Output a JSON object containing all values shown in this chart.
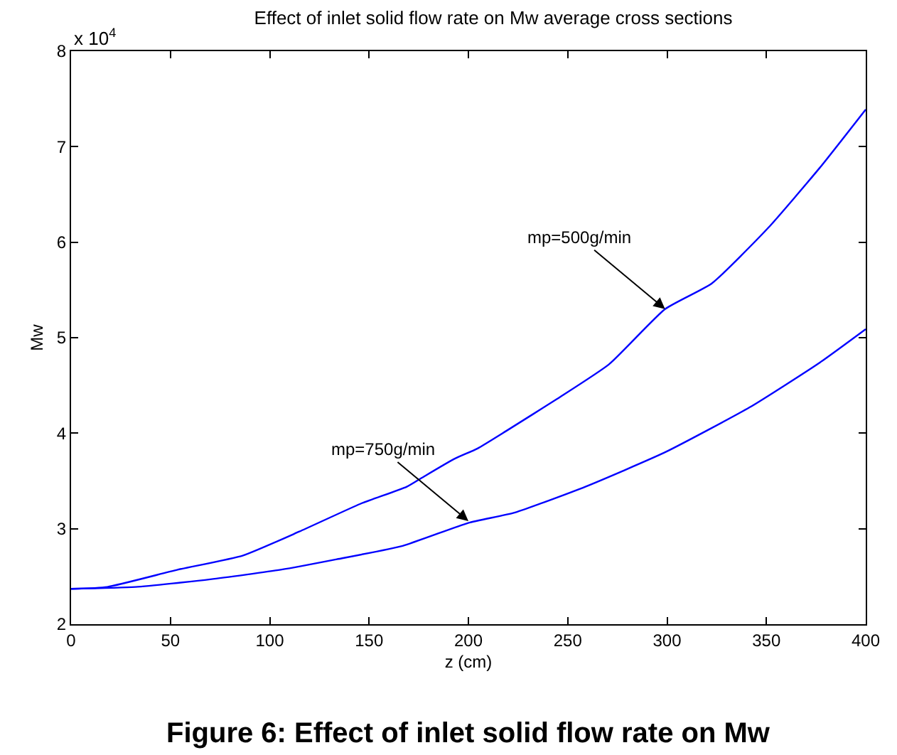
{
  "chart_data": {
    "type": "line",
    "title": "Effect of inlet solid flow rate on Mw average cross sections",
    "xlabel": "z (cm)",
    "ylabel": "Mw",
    "series": [
      {
        "color": "#0000ff",
        "x": [
          0,
          18.2,
          53.6,
          86.6,
          114.9,
          145.6,
          169,
          176.3,
          192.8,
          204.6,
          218.8,
          244.7,
          270.7,
          299,
          322.6,
          350.9,
          376.9,
          400
        ],
        "values": [
          2.37,
          2.39,
          2.57,
          2.72,
          2.97,
          3.26,
          3.44,
          3.53,
          3.73,
          3.84,
          4.02,
          4.36,
          4.72,
          5.3,
          5.57,
          6.15,
          6.78,
          7.39
        ]
      },
      {
        "color": "#0000ff",
        "x": [
          0,
          32.4,
          70.1,
          105.5,
          133.8,
          166.9,
          199.9,
          223.5,
          258.9,
          299,
          341.5,
          376.9,
          400
        ],
        "values": [
          2.37,
          2.39,
          2.47,
          2.57,
          2.68,
          2.82,
          3.06,
          3.17,
          3.44,
          3.8,
          4.27,
          4.74,
          5.09
        ]
      }
    ],
    "xlim": [
      0,
      400
    ],
    "xticks": [
      0,
      50,
      100,
      150,
      200,
      250,
      300,
      350,
      400
    ],
    "ylim": [
      2,
      8
    ],
    "yticks": [
      2,
      3,
      4,
      5,
      6,
      7,
      8
    ],
    "marker": "none",
    "line_style": "solid",
    "annotations": [
      "x 10$^{4}$",
      "Figure 6: Effect of inlet solid flow rate on Mw",
      {
        "text": "mp=500g/min",
        "x": 299,
        "y": 5.3
      },
      {
        "text": "mp=750g/min",
        "x": 200,
        "y": 3.08
      }
    ]
  }
}
